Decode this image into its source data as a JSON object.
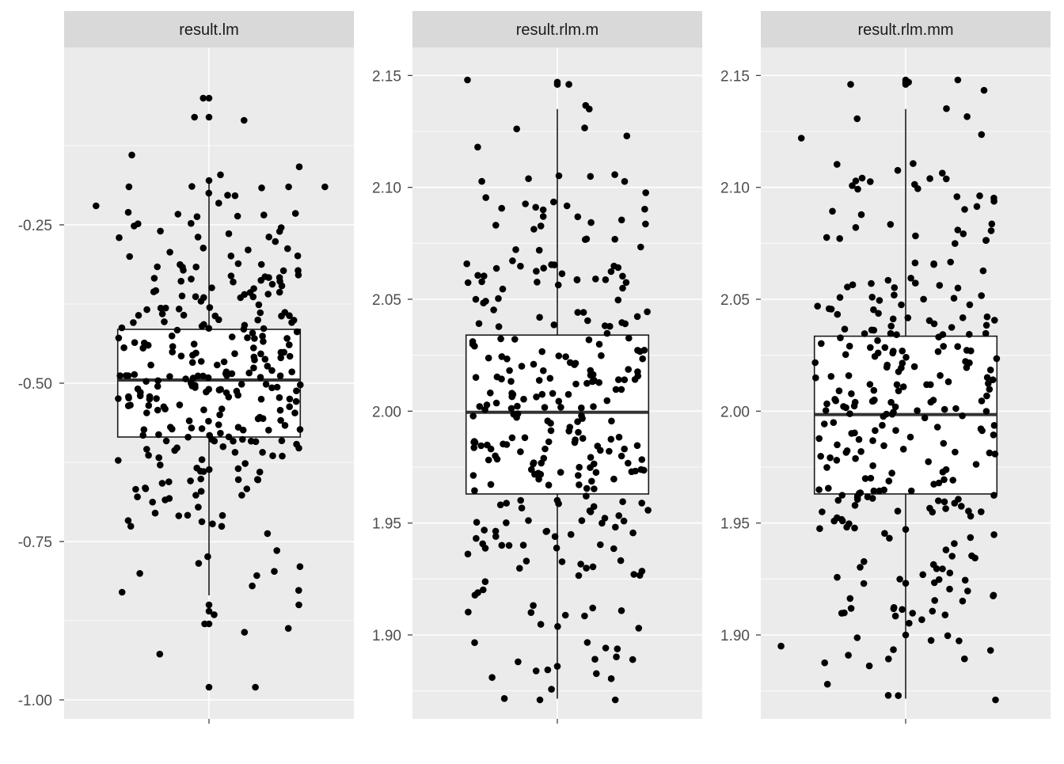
{
  "chart_data": [
    {
      "type": "boxplot",
      "facet_label": "result.lm",
      "ylim": [
        -1.03,
        0.03
      ],
      "yticks": [
        -1.0,
        -0.75,
        -0.5,
        -0.25
      ],
      "ytick_labels": [
        "-1.00",
        "-0.75",
        "-0.50",
        "-0.25"
      ],
      "grid": true,
      "box": {
        "q1": -0.585,
        "median": -0.495,
        "q3": -0.415,
        "whisker_low": -0.835,
        "whisker_high": -0.18
      },
      "n_points": 300,
      "spread": [
        -0.98,
        -0.06
      ],
      "highlighted_points": [
        [
          -0.04,
          -0.05
        ],
        [
          0.0,
          -0.05
        ],
        [
          -0.1,
          -0.08
        ],
        [
          0.0,
          -0.08
        ],
        [
          0.0,
          -0.18
        ],
        [
          0.8,
          -0.19
        ],
        [
          0.55,
          -0.19
        ],
        [
          -0.78,
          -0.22
        ],
        [
          0.0,
          -0.85
        ],
        [
          0.0,
          -0.86
        ],
        [
          0.0,
          -0.88
        ],
        [
          -0.03,
          -0.88
        ],
        [
          0.0,
          -0.98
        ],
        [
          0.32,
          -0.98
        ],
        [
          -0.6,
          -0.83
        ],
        [
          0.62,
          -0.85
        ]
      ]
    },
    {
      "type": "boxplot",
      "facet_label": "result.rlm.m",
      "ylim": [
        1.8625,
        2.1625
      ],
      "yticks": [
        1.9,
        1.95,
        2.0,
        2.05,
        2.1,
        2.15
      ],
      "ytick_labels": [
        "1.90",
        "1.95",
        "2.00",
        "2.05",
        "2.10",
        "2.15"
      ],
      "grid": true,
      "box": {
        "q1": 1.963,
        "median": 1.9995,
        "q3": 2.034,
        "whisker_low": 1.8715,
        "whisker_high": 2.135
      },
      "n_points": 300,
      "spread": [
        1.871,
        2.148
      ],
      "highlighted_points": [
        [
          -0.62,
          2.148
        ],
        [
          0.0,
          2.147
        ],
        [
          0.0,
          2.146
        ],
        [
          0.08,
          2.146
        ],
        [
          0.22,
          2.135
        ],
        [
          0.48,
          2.123
        ],
        [
          -0.55,
          2.118
        ],
        [
          -0.12,
          1.871
        ],
        [
          0.4,
          1.871
        ],
        [
          0.0,
          1.886
        ],
        [
          -0.45,
          1.881
        ],
        [
          0.52,
          1.889
        ]
      ]
    },
    {
      "type": "boxplot",
      "facet_label": "result.rlm.mm",
      "ylim": [
        1.8625,
        2.1625
      ],
      "yticks": [
        1.9,
        1.95,
        2.0,
        2.05,
        2.1,
        2.15
      ],
      "ytick_labels": [
        "1.90",
        "1.95",
        "2.00",
        "2.05",
        "2.10",
        "2.15"
      ],
      "grid": true,
      "box": {
        "q1": 1.963,
        "median": 1.9985,
        "q3": 2.0335,
        "whisker_low": 1.8715,
        "whisker_high": 2.135
      },
      "n_points": 300,
      "spread": [
        1.871,
        2.148
      ],
      "highlighted_points": [
        [
          0.0,
          2.148
        ],
        [
          0.0,
          2.147
        ],
        [
          0.0,
          2.146
        ],
        [
          0.02,
          2.147
        ],
        [
          -0.38,
          2.146
        ],
        [
          0.36,
          2.148
        ],
        [
          -0.72,
          2.122
        ],
        [
          -0.12,
          1.873
        ],
        [
          0.62,
          1.871
        ],
        [
          -0.54,
          1.878
        ],
        [
          0.0,
          1.9
        ],
        [
          -0.86,
          1.895
        ]
      ]
    }
  ]
}
